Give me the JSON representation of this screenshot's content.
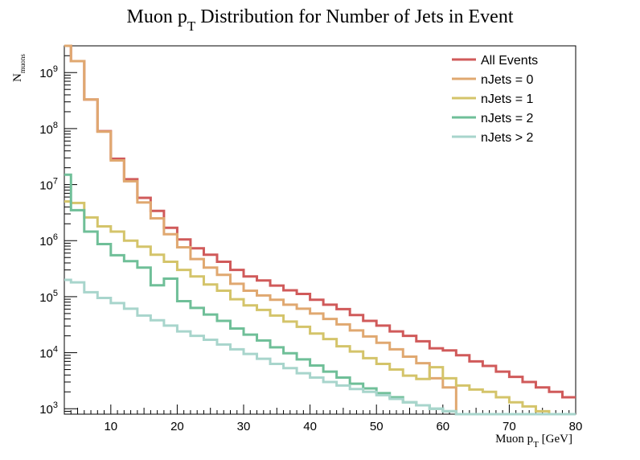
{
  "chart_data": {
    "type": "line",
    "title": {
      "main": "Muon p",
      "sub": "T",
      "rest": " Distribution for Number of Jets in Event"
    },
    "xlabel": {
      "main": "Muon p",
      "sub": "T",
      "rest": " [GeV]"
    },
    "ylabel": {
      "main": "N",
      "sub": "muons"
    },
    "xlim": [
      3,
      80
    ],
    "ylim": [
      800,
      3000000000
    ],
    "yscale": "log",
    "grid": false,
    "legend_position": "top-right",
    "x_ticks": [
      "10",
      "20",
      "30",
      "40",
      "50",
      "60",
      "70",
      "80"
    ],
    "y_ticks": [
      {
        "base": "10",
        "exp": "3"
      },
      {
        "base": "10",
        "exp": "4"
      },
      {
        "base": "10",
        "exp": "5"
      },
      {
        "base": "10",
        "exp": "6"
      },
      {
        "base": "10",
        "exp": "7"
      },
      {
        "base": "10",
        "exp": "8"
      },
      {
        "base": "10",
        "exp": "9"
      }
    ],
    "bin_edges": [
      3,
      4,
      6,
      8,
      10,
      12,
      14,
      16,
      18,
      20,
      22,
      24,
      26,
      28,
      30,
      32,
      34,
      36,
      38,
      40,
      42,
      44,
      46,
      48,
      50,
      52,
      54,
      56,
      58,
      60,
      62,
      64,
      66,
      68,
      70,
      72,
      74,
      76,
      78,
      80
    ],
    "series": [
      {
        "name": "All Events",
        "color": "#d05a5a",
        "values": [
          3000000000,
          1600000000,
          330000000,
          90000000,
          29000000,
          12500000,
          5800000,
          3400000,
          1700000,
          1050000,
          730000,
          560000,
          420000,
          300000,
          230000,
          195000,
          158000,
          130000,
          112000,
          88000,
          72000,
          60000,
          47000,
          37000,
          30500,
          24000,
          20000,
          16000,
          12000,
          11000,
          9000,
          7000,
          5800,
          4600,
          3700,
          3000,
          2400,
          2000,
          1600
        ]
      },
      {
        "name": "nJets = 0",
        "color": "#e0a870",
        "values": [
          3000000000,
          1600000000,
          330000000,
          88000000,
          27000000,
          11500000,
          4800000,
          2500000,
          1300000,
          760000,
          470000,
          330000,
          245000,
          170000,
          128000,
          105000,
          88000,
          72000,
          61000,
          50000,
          40000,
          32000,
          25000,
          19500,
          15000,
          11500,
          8500,
          6500,
          3500,
          2400,
          800,
          800,
          800,
          800,
          800,
          800,
          800,
          800,
          800
        ]
      },
      {
        "name": "nJets = 1",
        "color": "#d4c46a",
        "values": [
          5000000,
          4700000,
          2600000,
          1800000,
          1450000,
          1000000,
          780000,
          560000,
          420000,
          300000,
          230000,
          165000,
          128000,
          90000,
          70000,
          58000,
          46000,
          36000,
          29000,
          22000,
          17500,
          13000,
          10500,
          8000,
          6300,
          5000,
          3900,
          3400,
          5500,
          3500,
          2600,
          2200,
          2000,
          1600,
          1300,
          1100,
          900,
          800,
          800
        ]
      },
      {
        "name": "nJets = 2",
        "color": "#6fbf98",
        "values": [
          15000000,
          3500000,
          1450000,
          870000,
          550000,
          430000,
          330000,
          160000,
          210000,
          83000,
          63000,
          48000,
          37000,
          27000,
          21000,
          16500,
          12500,
          9800,
          7600,
          5900,
          4600,
          3600,
          2800,
          2300,
          1900,
          1600,
          1300,
          1150,
          1000,
          900,
          800,
          800,
          800,
          800,
          800,
          800,
          800,
          800,
          800
        ]
      },
      {
        "name": "nJets > 2",
        "color": "#a8d5cc",
        "values": [
          200000,
          180000,
          120000,
          95000,
          77000,
          61000,
          46000,
          38000,
          30500,
          24000,
          20000,
          17000,
          14000,
          11500,
          9500,
          7800,
          6300,
          5300,
          4300,
          3600,
          3000,
          2600,
          2250,
          2000,
          1750,
          1500,
          1300,
          1150,
          1000,
          900,
          800,
          800,
          800,
          800,
          800,
          800,
          800,
          800,
          800
        ]
      }
    ]
  }
}
